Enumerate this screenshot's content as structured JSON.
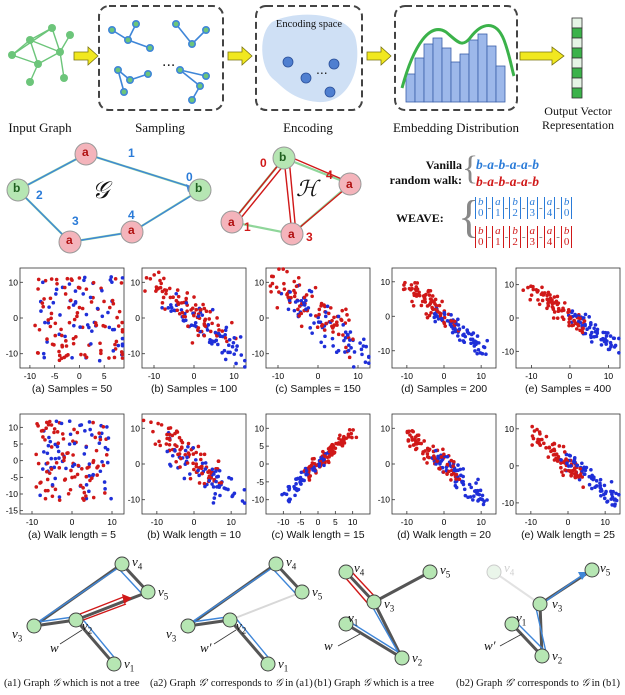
{
  "pipeline": {
    "input_graph": "Input Graph",
    "sampling": "Sampling",
    "encoding": "Encoding",
    "encoding_space": "Encoding space",
    "embedding": "Embedding Distribution",
    "output_line1": "Output Vector",
    "output_line2": "Representation",
    "ellipsis": "..."
  },
  "graphs": {
    "g_symbol": "𝒢",
    "h_symbol": "ℋ",
    "node_a": "a",
    "node_b": "b",
    "g_edges": [
      "1",
      "2",
      "3",
      "4",
      "0"
    ],
    "h_edges": [
      "0",
      "1",
      "4",
      "3"
    ]
  },
  "legend": {
    "vanilla_line1": "Vanilla",
    "vanilla_line2": "random walk:",
    "vanilla_blue": "b-a-b-a-a-b",
    "vanilla_red": "b-a-b-a-a-b",
    "weave_label": "WEAVE:",
    "weave_blue": [
      "b 0",
      "a 1",
      "b 2",
      "a 3",
      "a 4",
      "b 0"
    ],
    "weave_red": [
      "b 0",
      "a 1",
      "b 2",
      "a 3",
      "a 4",
      "b 0"
    ],
    "colors": {
      "blue": "#2a7bd8",
      "red": "#d01818"
    }
  },
  "scatter_rows": [
    {
      "captions": [
        "(a) Samples = 50",
        "(b) Samples = 100",
        "(c) Samples = 150",
        "(d) Samples = 200",
        "(e) Samples = 400"
      ]
    },
    {
      "captions": [
        "(a) Walk length = 5",
        "(b) Walk length = 10",
        "(c) Walk length = 15",
        "(d) Walk length = 20",
        "(e) Walk length = 25"
      ]
    }
  ],
  "chart_data": [
    {
      "type": "scatter",
      "xlim": [
        -12,
        9
      ],
      "ylim": [
        -14,
        14
      ],
      "xticks": [
        "-10",
        "-5",
        "0",
        "5"
      ],
      "yticks": [
        "10",
        "0",
        "-10"
      ],
      "series": [
        {
          "color": "#d01818"
        },
        {
          "color": "#1f2fd8"
        }
      ],
      "pattern": "mixed"
    },
    {
      "type": "scatter",
      "xlim": [
        -13,
        13
      ],
      "ylim": [
        -14,
        14
      ],
      "xticks": [
        "-10",
        "0",
        "10"
      ],
      "yticks": [
        "10",
        "0",
        "-10"
      ],
      "series": [
        {
          "color": "#d01818"
        },
        {
          "color": "#1f2fd8"
        }
      ],
      "pattern": "split-diag"
    },
    {
      "type": "scatter",
      "xlim": [
        -13,
        13
      ],
      "ylim": [
        -14,
        14
      ],
      "xticks": [
        "-10",
        "0",
        "10"
      ],
      "yticks": [
        "10",
        "0",
        "-10"
      ],
      "series": [
        {
          "color": "#d01818"
        },
        {
          "color": "#1f2fd8"
        }
      ],
      "pattern": "mixed-split"
    },
    {
      "type": "scatter",
      "xlim": [
        -14,
        14
      ],
      "ylim": [
        -15,
        14
      ],
      "xticks": [
        "-10",
        "0",
        "10"
      ],
      "yticks": [
        "10",
        "0",
        "-10"
      ],
      "series": [
        {
          "color": "#d01818"
        },
        {
          "color": "#1f2fd8"
        }
      ],
      "pattern": "diag"
    },
    {
      "type": "scatter",
      "xlim": [
        -14,
        13
      ],
      "ylim": [
        -15,
        15
      ],
      "xticks": [
        "-10",
        "0",
        "10"
      ],
      "yticks": [
        "10",
        "0",
        "-10"
      ],
      "series": [
        {
          "color": "#d01818"
        },
        {
          "color": "#1f2fd8"
        }
      ],
      "pattern": "diag-sep"
    },
    {
      "type": "scatter",
      "xlim": [
        -13,
        13
      ],
      "ylim": [
        -16,
        14
      ],
      "xticks": [
        "-10",
        "0",
        "10"
      ],
      "yticks": [
        "10",
        "5",
        "0",
        "-5",
        "-10",
        "-15"
      ],
      "series": [
        {
          "color": "#d01818"
        },
        {
          "color": "#1f2fd8"
        }
      ],
      "pattern": "mixed"
    },
    {
      "type": "scatter",
      "xlim": [
        -14,
        14
      ],
      "ylim": [
        -14,
        14
      ],
      "xticks": [
        "-10",
        "0",
        "10"
      ],
      "yticks": [
        "10",
        "0",
        "-10"
      ],
      "series": [
        {
          "color": "#d01818"
        },
        {
          "color": "#1f2fd8"
        }
      ],
      "pattern": "split-diag"
    },
    {
      "type": "scatter",
      "xlim": [
        -15,
        15
      ],
      "ylim": [
        -14,
        14
      ],
      "xticks": [
        "-10",
        "-5",
        "0",
        "5",
        "10"
      ],
      "yticks": [
        "10",
        "5",
        "0",
        "-5",
        "-10"
      ],
      "series": [
        {
          "color": "#d01818"
        },
        {
          "color": "#1f2fd8"
        }
      ],
      "pattern": "rise"
    },
    {
      "type": "scatter",
      "xlim": [
        -14,
        14
      ],
      "ylim": [
        -14,
        14
      ],
      "xticks": [
        "-10",
        "0",
        "10"
      ],
      "yticks": [
        "10",
        "0",
        "-10"
      ],
      "series": [
        {
          "color": "#d01818"
        },
        {
          "color": "#1f2fd8"
        }
      ],
      "pattern": "diag"
    },
    {
      "type": "scatter",
      "xlim": [
        -14,
        14
      ],
      "ylim": [
        -13,
        14
      ],
      "xticks": [
        "-10",
        "0",
        "10"
      ],
      "yticks": [
        "10",
        "0",
        "-10"
      ],
      "series": [
        {
          "color": "#d01818"
        },
        {
          "color": "#1f2fd8"
        }
      ],
      "pattern": "diag-sep"
    }
  ],
  "trees": {
    "v4": "v",
    "v4_sub": "4",
    "v5": "v",
    "v5_sub": "5",
    "v3": "v",
    "v3_sub": "3",
    "v2": "v",
    "v2_sub": "2",
    "v1": "v",
    "v1_sub": "1",
    "w": "w",
    "w_prime": "w′"
  },
  "bottom_captions": [
    {
      "pre": "(a1) Graph ",
      "sym": "𝒢",
      "post": " which is not a tree"
    },
    {
      "pre": "(a2) Graph ",
      "sym": "𝒢′",
      "post": " corresponds to ",
      "sym2": "𝒢",
      "post2": " in (a1)"
    },
    {
      "pre": "(b1) Graph ",
      "sym": "𝒢",
      "post": " which is a tree"
    },
    {
      "pre": "(b2) Graph ",
      "sym": "𝒢′",
      "post": " corresponds to ",
      "sym2": "𝒢",
      "post2": " in (b1)"
    }
  ]
}
